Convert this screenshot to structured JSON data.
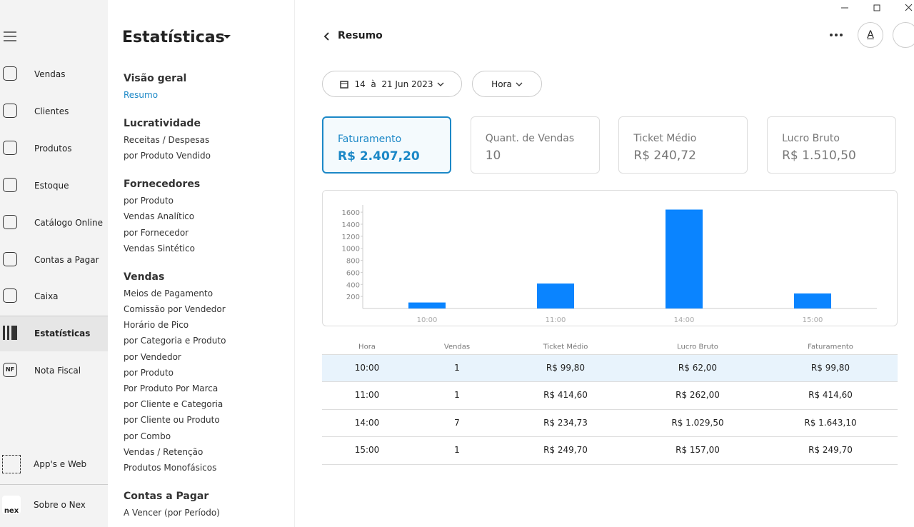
{
  "sidebar": {
    "items": [
      "Vendas",
      "Clientes",
      "Produtos",
      "Estoque",
      "Catálogo Online",
      "Contas a Pagar",
      "Caixa",
      "Estatísticas",
      "Nota Fiscal"
    ],
    "bottom": [
      "App's e Web",
      "Sobre o Nex"
    ],
    "logo": "nex",
    "nf": "NF"
  },
  "menu": {
    "title": "Estatísticas",
    "sections": [
      {
        "heading": "Visão geral",
        "items": [
          "Resumo"
        ]
      },
      {
        "heading": "Lucratividade",
        "items": [
          "Receitas / Despesas",
          "por Produto Vendido"
        ]
      },
      {
        "heading": "Fornecedores",
        "items": [
          "por Produto",
          "Vendas Analítico",
          "por Fornecedor",
          "Vendas Sintético"
        ]
      },
      {
        "heading": "Vendas",
        "items": [
          "Meios de Pagamento",
          "Comissão por Vendedor",
          "Horário de Pico",
          "por Categoria e Produto",
          "por Vendedor",
          "por Produto",
          "Por Produto Por Marca",
          "por Cliente e Categoria",
          "por Cliente ou Produto",
          "por Combo",
          "Vendas / Retenção",
          "Produtos Monofásicos"
        ]
      },
      {
        "heading": "Contas a Pagar",
        "items": [
          "A Vencer (por Período)"
        ]
      }
    ]
  },
  "header": {
    "title": "Resumo",
    "avatar": "A"
  },
  "filters": {
    "date": "14  à  21 Jun 2023",
    "period": "Hora"
  },
  "cards": [
    {
      "label": "Faturamento",
      "value": "R$ 2.407,20"
    },
    {
      "label": "Quant. de Vendas",
      "value": "10"
    },
    {
      "label": "Ticket Médio",
      "value": "R$ 240,72"
    },
    {
      "label": "Lucro Bruto",
      "value": "R$ 1.510,50"
    }
  ],
  "chart_data": {
    "type": "bar",
    "categories": [
      "10:00",
      "11:00",
      "14:00",
      "15:00"
    ],
    "values": [
      99.8,
      414.6,
      1643.1,
      249.7
    ],
    "color": "#0a84ff",
    "ylim": [
      0,
      1720
    ],
    "yticks": [
      200,
      400,
      600,
      800,
      1000,
      1200,
      1400,
      1600
    ]
  },
  "table": {
    "header": [
      "Hora",
      "Vendas",
      "Ticket Médio",
      "Lucro Bruto",
      "Faturamento"
    ],
    "rows": [
      [
        "10:00",
        "1",
        "R$ 99,80",
        "R$ 62,00",
        "R$ 99,80"
      ],
      [
        "11:00",
        "1",
        "R$ 414,60",
        "R$ 262,00",
        "R$ 414,60"
      ],
      [
        "14:00",
        "7",
        "R$ 234,73",
        "R$ 1.029,50",
        "R$ 1.643,10"
      ],
      [
        "15:00",
        "1",
        "R$ 249,70",
        "R$ 157,00",
        "R$ 249,70"
      ]
    ]
  }
}
